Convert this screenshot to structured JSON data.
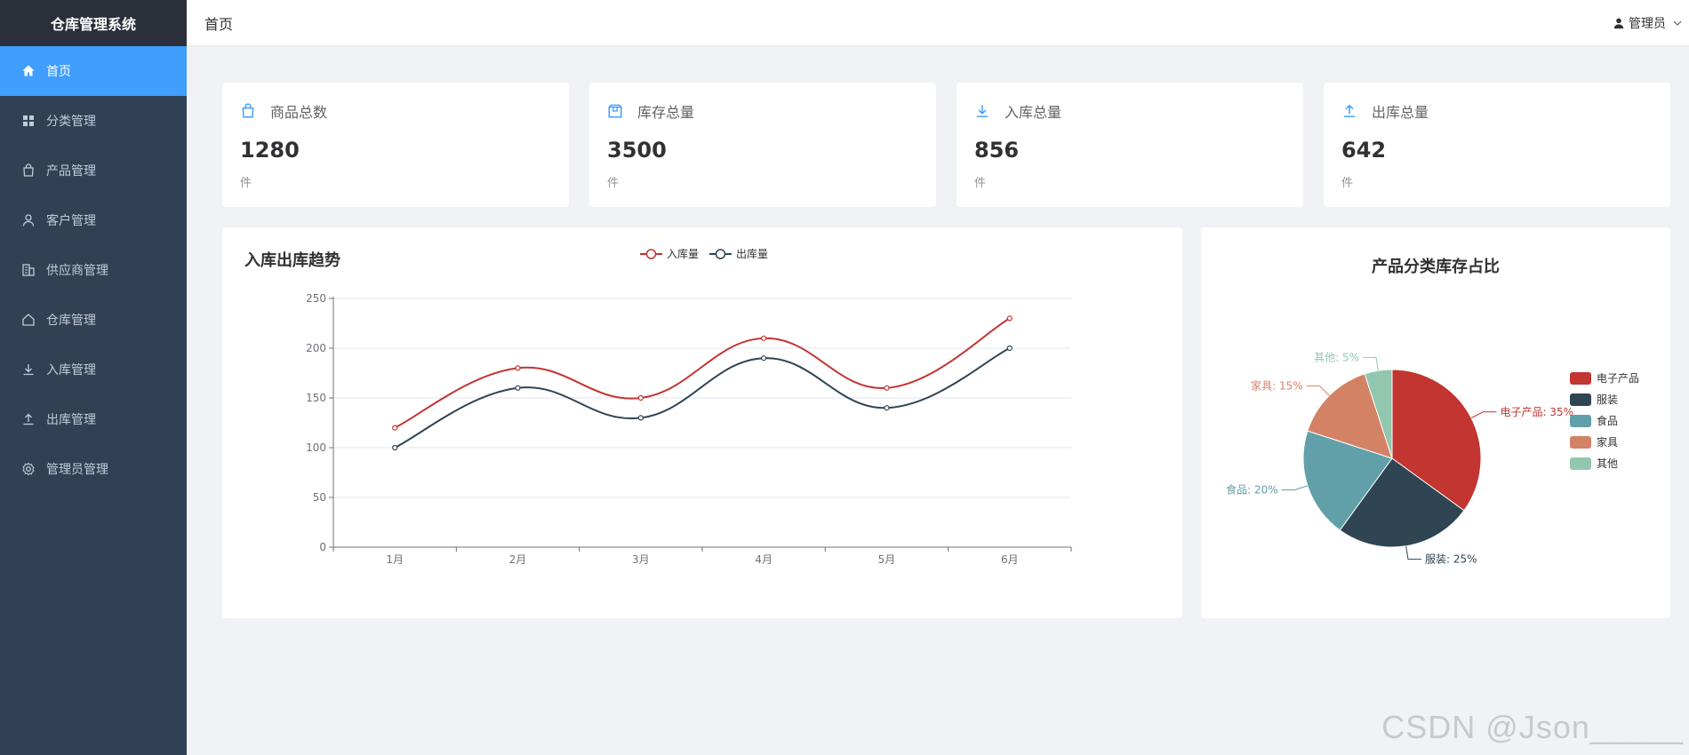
{
  "app": {
    "title": "仓库管理系统"
  },
  "sidebar": {
    "items": [
      {
        "label": "首页",
        "icon": "home-icon",
        "active": true
      },
      {
        "label": "分类管理",
        "icon": "grid-icon"
      },
      {
        "label": "产品管理",
        "icon": "bag-icon"
      },
      {
        "label": "客户管理",
        "icon": "user-icon"
      },
      {
        "label": "供应商管理",
        "icon": "building-icon"
      },
      {
        "label": "仓库管理",
        "icon": "house-icon"
      },
      {
        "label": "入库管理",
        "icon": "download-icon"
      },
      {
        "label": "出库管理",
        "icon": "upload-icon"
      },
      {
        "label": "管理员管理",
        "icon": "gear-icon"
      }
    ]
  },
  "header": {
    "page_title": "首页",
    "user_label": "管理员"
  },
  "stats": [
    {
      "label": "商品总数",
      "value": "1280",
      "unit": "件",
      "icon": "bag-icon"
    },
    {
      "label": "库存总量",
      "value": "3500",
      "unit": "件",
      "icon": "box-icon"
    },
    {
      "label": "入库总量",
      "value": "856",
      "unit": "件",
      "icon": "download-icon"
    },
    {
      "label": "出库总量",
      "value": "642",
      "unit": "件",
      "icon": "upload-icon"
    }
  ],
  "colors": {
    "accent": "#409eff",
    "sidebar": "#304156",
    "in": "#c23531",
    "out": "#2f4554"
  },
  "chart_data": [
    {
      "type": "line",
      "title": "入库出库趋势",
      "categories": [
        "1月",
        "2月",
        "3月",
        "4月",
        "5月",
        "6月"
      ],
      "series": [
        {
          "name": "入库量",
          "values": [
            120,
            180,
            150,
            210,
            160,
            230
          ],
          "color": "#c23531"
        },
        {
          "name": "出库量",
          "values": [
            100,
            160,
            130,
            190,
            140,
            200
          ],
          "color": "#2f4554"
        }
      ],
      "ylim": [
        0,
        250
      ],
      "yticks": [
        0,
        50,
        100,
        150,
        200,
        250
      ],
      "grid": true,
      "legend": "top-center"
    },
    {
      "type": "pie",
      "title": "产品分类库存占比",
      "slices": [
        {
          "name": "电子产品",
          "value": 35,
          "label": "电子产品: 35%",
          "color": "#c23531"
        },
        {
          "name": "服装",
          "value": 25,
          "label": "服装: 25%",
          "color": "#2f4554"
        },
        {
          "name": "食品",
          "value": 20,
          "label": "食品: 20%",
          "color": "#61a0a8"
        },
        {
          "name": "家具",
          "value": 15,
          "label": "家具: 15%",
          "color": "#d48265"
        },
        {
          "name": "其他",
          "value": 5,
          "label": "其他: 5%",
          "color": "#91c7ae"
        }
      ],
      "legend": "right"
    }
  ],
  "watermark": "CSDN @Json_____"
}
